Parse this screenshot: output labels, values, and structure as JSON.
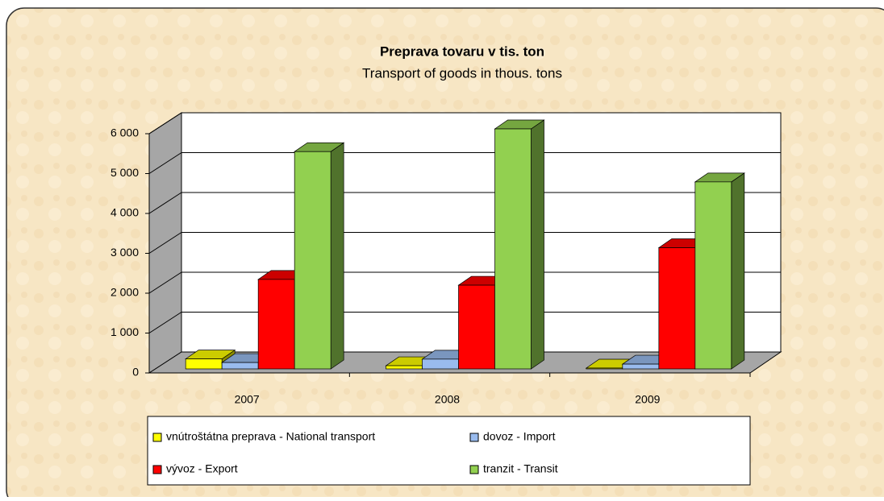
{
  "chart_data": {
    "type": "bar3d",
    "title": "Preprava tovaru v tis. ton",
    "subtitle": "Transport of goods in thous. tons",
    "categories": [
      "2007",
      "2008",
      "2009"
    ],
    "series": [
      {
        "name": "vnútroštátna preprava - National transport",
        "color": "#ffff00",
        "values": [
          250,
          80,
          20
        ]
      },
      {
        "name": "dovoz - Import",
        "color": "#99bbee",
        "values": [
          160,
          245,
          120
        ]
      },
      {
        "name": "vývoz - Export",
        "color": "#ff0000",
        "values": [
          2245,
          2100,
          3040
        ]
      },
      {
        "name": "tranzit - Transit",
        "color": "#92d050",
        "values": [
          5450,
          6020,
          4690
        ]
      }
    ],
    "ylim": [
      0,
      6000
    ],
    "yticks": [
      0,
      {
        "value": 1000,
        "label": "1 000"
      },
      {
        "value": 2000,
        "label": "2 000"
      },
      {
        "value": 3000,
        "label": "3 000"
      },
      {
        "value": 4000,
        "label": "4 000"
      },
      {
        "value": 5000,
        "label": "5 000"
      },
      {
        "value": 6000,
        "label": "6 000"
      }
    ],
    "grid": true,
    "legend": "bottom"
  }
}
